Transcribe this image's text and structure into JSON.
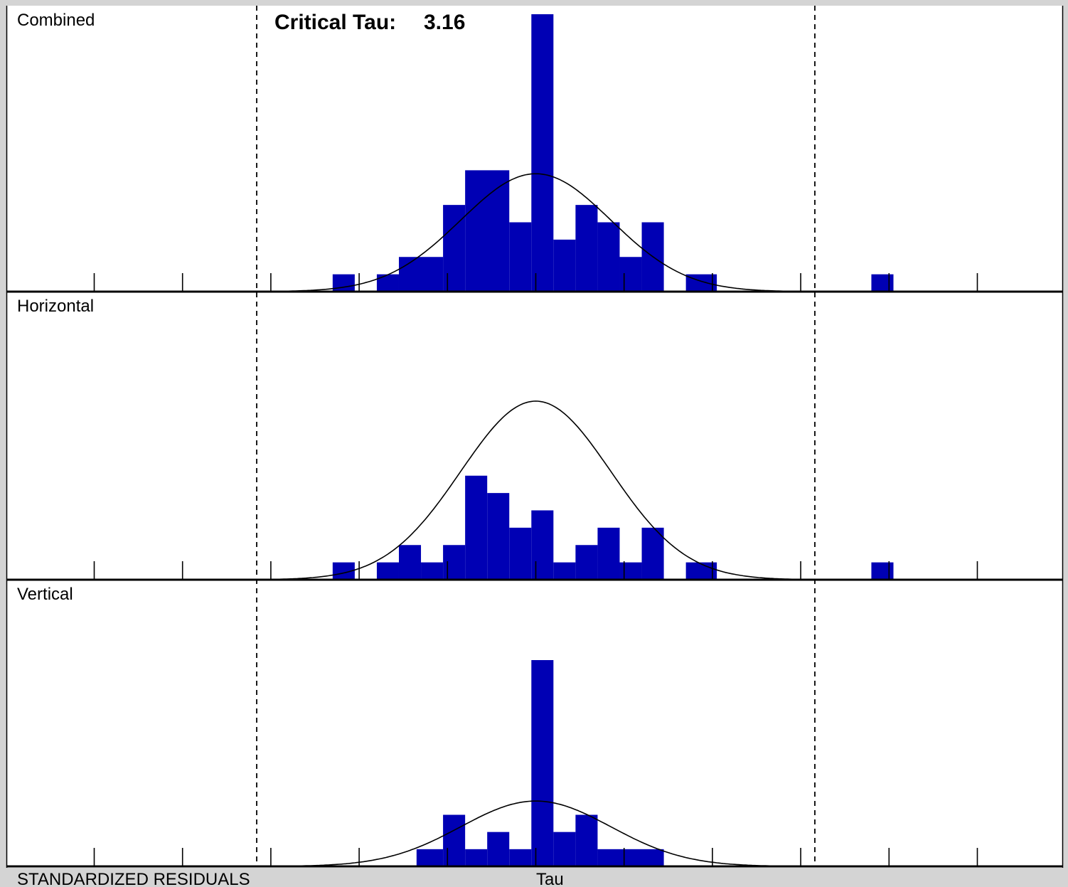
{
  "header": {
    "critical_label": "Critical Tau:",
    "critical_value": "3.16"
  },
  "footer": {
    "left_label": "STANDARDIZED RESIDUALS",
    "axis_label": "Tau"
  },
  "colors": {
    "bar": "#0000b4",
    "background": "#ffffff",
    "frame": "#d4d4d4",
    "curve": "#000000"
  },
  "chart_data": {
    "type": "bar",
    "x_axis": {
      "range": [
        -6,
        6
      ],
      "tick_step": 1,
      "bin_width": 0.25
    },
    "critical_tau": [
      -3.16,
      3.16
    ],
    "panels": [
      {
        "name": "Combined",
        "ymax": 16,
        "curve_peak": 6.8,
        "bars": [
          {
            "x0": -2.3,
            "x1": -2.05,
            "value": 1
          },
          {
            "x0": -1.8,
            "x1": -1.55,
            "value": 1
          },
          {
            "x0": -1.55,
            "x1": -1.05,
            "value": 2
          },
          {
            "x0": -1.05,
            "x1": -0.8,
            "value": 5
          },
          {
            "x0": -0.8,
            "x1": -0.3,
            "value": 7
          },
          {
            "x0": -0.3,
            "x1": -0.05,
            "value": 4
          },
          {
            "x0": -0.05,
            "x1": 0.2,
            "value": 16
          },
          {
            "x0": 0.2,
            "x1": 0.45,
            "value": 3
          },
          {
            "x0": 0.45,
            "x1": 0.7,
            "value": 5
          },
          {
            "x0": 0.7,
            "x1": 0.95,
            "value": 4
          },
          {
            "x0": 0.95,
            "x1": 1.2,
            "value": 2
          },
          {
            "x0": 1.2,
            "x1": 1.45,
            "value": 4
          },
          {
            "x0": 1.7,
            "x1": 2.05,
            "value": 1
          },
          {
            "x0": 3.8,
            "x1": 4.05,
            "value": 1
          }
        ]
      },
      {
        "name": "Horizontal",
        "ymax": 16,
        "curve_peak": 10.3,
        "bars": [
          {
            "x0": -2.3,
            "x1": -2.05,
            "value": 1
          },
          {
            "x0": -1.8,
            "x1": -1.55,
            "value": 1
          },
          {
            "x0": -1.55,
            "x1": -1.3,
            "value": 2
          },
          {
            "x0": -1.3,
            "x1": -1.05,
            "value": 1
          },
          {
            "x0": -1.05,
            "x1": -0.8,
            "value": 2
          },
          {
            "x0": -0.8,
            "x1": -0.55,
            "value": 6
          },
          {
            "x0": -0.55,
            "x1": -0.3,
            "value": 5
          },
          {
            "x0": -0.3,
            "x1": -0.05,
            "value": 3
          },
          {
            "x0": -0.05,
            "x1": 0.2,
            "value": 4
          },
          {
            "x0": 0.2,
            "x1": 0.45,
            "value": 1
          },
          {
            "x0": 0.45,
            "x1": 0.7,
            "value": 2
          },
          {
            "x0": 0.7,
            "x1": 0.95,
            "value": 3
          },
          {
            "x0": 0.95,
            "x1": 1.2,
            "value": 1
          },
          {
            "x0": 1.2,
            "x1": 1.45,
            "value": 3
          },
          {
            "x0": 1.7,
            "x1": 2.05,
            "value": 1
          },
          {
            "x0": 3.8,
            "x1": 4.05,
            "value": 1
          }
        ]
      },
      {
        "name": "Vertical",
        "ymax": 12,
        "curve_peak": 3.8,
        "bars": [
          {
            "x0": -1.35,
            "x1": -1.05,
            "value": 1
          },
          {
            "x0": -1.05,
            "x1": -0.8,
            "value": 3
          },
          {
            "x0": -0.8,
            "x1": -0.55,
            "value": 1
          },
          {
            "x0": -0.55,
            "x1": -0.3,
            "value": 2
          },
          {
            "x0": -0.3,
            "x1": -0.05,
            "value": 1
          },
          {
            "x0": -0.05,
            "x1": 0.2,
            "value": 12
          },
          {
            "x0": 0.2,
            "x1": 0.45,
            "value": 2
          },
          {
            "x0": 0.45,
            "x1": 0.7,
            "value": 3
          },
          {
            "x0": 0.7,
            "x1": 1.45,
            "value": 1
          }
        ]
      }
    ]
  }
}
